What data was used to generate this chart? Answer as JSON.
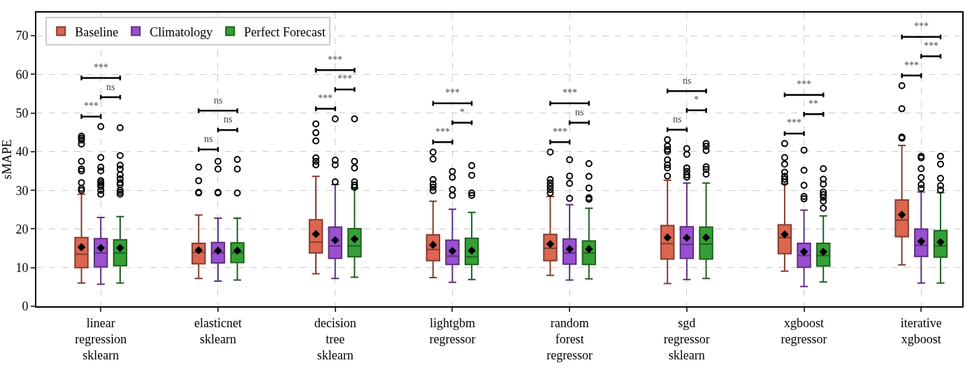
{
  "chart_data": {
    "type": "box",
    "ylabel": "sMAPE",
    "categories": [
      "linear regression sklearn",
      "elasticnet sklearn",
      "decision tree sklearn",
      "lightgbm regressor",
      "random forest regressor",
      "sgd regressor sklearn",
      "xgboost regressor",
      "iterative xgboost"
    ],
    "ylim": [
      0,
      76
    ],
    "yticks": [
      0,
      10,
      20,
      30,
      40,
      50,
      60,
      70
    ],
    "grid": true,
    "legend": "top left",
    "marker": "circle",
    "series": [
      {
        "name": "Baseline",
        "color": "#dc6650",
        "boxes": [
          {
            "low": 6,
            "q1": 10,
            "median": 13.5,
            "q3": 17.8,
            "high": 29,
            "mean": 15.3,
            "outliers": [
              30,
              30.5,
              32,
              35,
              35.5,
              37.5,
              42,
              43,
              43.5,
              44
            ]
          },
          {
            "low": 7.2,
            "q1": 11,
            "median": 14,
            "q3": 16.3,
            "high": 23.6,
            "mean": 14.5,
            "outliers": [
              29.3,
              29.5,
              32.5,
              36
            ]
          },
          {
            "low": 8.4,
            "q1": 13.8,
            "median": 16.6,
            "q3": 22.4,
            "high": 33.6,
            "mean": 18.7,
            "outliers": [
              36.6,
              37.5,
              38.4,
              42.8,
              44.9,
              47.2
            ]
          },
          {
            "low": 7.4,
            "q1": 11.8,
            "median": 14.7,
            "q3": 18.5,
            "high": 27.2,
            "mean": 15.9,
            "outliers": [
              29.9,
              30.8,
              31.6,
              32.8,
              38.1,
              39.9
            ]
          },
          {
            "low": 8,
            "q1": 11.8,
            "median": 15,
            "q3": 18.6,
            "high": 28.4,
            "mean": 16.1,
            "outliers": [
              29.3,
              30.2,
              31.1,
              31.9,
              32.8,
              39.9
            ]
          },
          {
            "low": 5.9,
            "q1": 12.2,
            "median": 16.2,
            "q3": 20.9,
            "high": 32.6,
            "mean": 17.8,
            "outliers": [
              33.7,
              35.8,
              36.6,
              37.9,
              40.1,
              40.6,
              41.5,
              43.1
            ]
          },
          {
            "low": 9.1,
            "q1": 13.6,
            "median": 17.8,
            "q3": 21.1,
            "high": 31.7,
            "mean": 18.6,
            "outliers": [
              32.1,
              32.9,
              33.6,
              34.7,
              36.8,
              38.5,
              42.1
            ]
          },
          {
            "low": 10.7,
            "q1": 18,
            "median": 22.3,
            "q3": 27.5,
            "high": 41.6,
            "mean": 23.7,
            "outliers": [
              43.5,
              43.8,
              51.1,
              57.1
            ]
          }
        ]
      },
      {
        "name": "Climatology",
        "color": "#9a50d0",
        "boxes": [
          {
            "low": 5.7,
            "q1": 10.2,
            "median": 13.8,
            "q3": 17.5,
            "high": 23,
            "mean": 15.1,
            "outliers": [
              29,
              30,
              31,
              31.5,
              32,
              32.5,
              35,
              36,
              38.5,
              46.5
            ]
          },
          {
            "low": 6.5,
            "q1": 11.2,
            "median": 13.9,
            "q3": 16.5,
            "high": 22.8,
            "mean": 14.4,
            "outliers": [
              29.3,
              29.5,
              35.5,
              37.5
            ]
          },
          {
            "low": 7.2,
            "q1": 12.4,
            "median": 15.6,
            "q3": 20.5,
            "high": 31.5,
            "mean": 17.1,
            "outliers": [
              32.2,
              36.6,
              37.8,
              48.5
            ]
          },
          {
            "low": 6.2,
            "q1": 10.8,
            "median": 13,
            "q3": 17.1,
            "high": 25.1,
            "mean": 14.3,
            "outliers": [
              28.7,
              30.2,
              33.4,
              34.9
            ]
          },
          {
            "low": 6.8,
            "q1": 10.9,
            "median": 13.8,
            "q3": 17.4,
            "high": 26.3,
            "mean": 14.8,
            "outliers": [
              27.9,
              31.8,
              33.7,
              37.9
            ]
          },
          {
            "low": 6.9,
            "q1": 12.4,
            "median": 16,
            "q3": 20.6,
            "high": 31.9,
            "mean": 17.7,
            "outliers": [
              33.4,
              34,
              34.9,
              35.8,
              39.3,
              40.8
            ]
          },
          {
            "low": 5.1,
            "q1": 10.1,
            "median": 13.1,
            "q3": 16.3,
            "high": 24.9,
            "mean": 14.1,
            "outliers": [
              27.8,
              28.4,
              31.3,
              35.2,
              40.4
            ]
          },
          {
            "low": 6,
            "q1": 12.9,
            "median": 15.8,
            "q3": 20,
            "high": 29.6,
            "mean": 16.8,
            "outliers": [
              30.5,
              31.5,
              33.3,
              35.6,
              38.4,
              38.8
            ]
          }
        ]
      },
      {
        "name": "Perfect Forecast",
        "color": "#35a035",
        "boxes": [
          {
            "low": 6,
            "q1": 10.5,
            "median": 13.8,
            "q3": 17.2,
            "high": 23.2,
            "mean": 15.1,
            "outliers": [
              29,
              29.5,
              30,
              31.5,
              32,
              33,
              34,
              35.5,
              36.5,
              39,
              46.2
            ]
          },
          {
            "low": 6.8,
            "q1": 11.3,
            "median": 13.9,
            "q3": 16.4,
            "high": 22.8,
            "mean": 14.4,
            "outliers": [
              29.3,
              35.5,
              38
            ]
          },
          {
            "low": 7.5,
            "q1": 12.8,
            "median": 15.6,
            "q3": 20.1,
            "high": 30.5,
            "mean": 17.4,
            "outliers": [
              30.8,
              31.4,
              32.2,
              35.8,
              37.5,
              48.5
            ]
          },
          {
            "low": 6.9,
            "q1": 10.8,
            "median": 12.8,
            "q3": 17.6,
            "high": 24.3,
            "mean": 14.4,
            "outliers": [
              28.7,
              29.3,
              33.9,
              36.4
            ]
          },
          {
            "low": 7.1,
            "q1": 10.8,
            "median": 13.8,
            "q3": 16.9,
            "high": 25.4,
            "mean": 14.8,
            "outliers": [
              27.7,
              28.1,
              30.6,
              33.6,
              36.9
            ]
          },
          {
            "low": 7.2,
            "q1": 12.2,
            "median": 16.1,
            "q3": 20.5,
            "high": 31.9,
            "mean": 17.8,
            "outliers": [
              34.2,
              35.4,
              36.1,
              40.3,
              41.4,
              42.1
            ]
          },
          {
            "low": 6.3,
            "q1": 10.4,
            "median": 13.1,
            "q3": 16.3,
            "high": 23.4,
            "mean": 14.1,
            "outliers": [
              25.4,
              27.2,
              28.2,
              28.9,
              29.6,
              31.6,
              32.9,
              35.6
            ]
          },
          {
            "low": 6,
            "q1": 12.7,
            "median": 15.6,
            "q3": 19.6,
            "high": 29.4,
            "mean": 16.6,
            "outliers": [
              30.1,
              31.2,
              33.1,
              36.8,
              38.8
            ]
          }
        ]
      }
    ],
    "annotations": [
      "***",
      "ns",
      "***",
      "ns",
      "ns",
      "ns",
      "***",
      "***",
      "***",
      "***",
      "*",
      "***",
      "***",
      "ns",
      "***",
      "ns",
      "*",
      "ns",
      "***",
      "**",
      "***",
      "***",
      "***",
      "***"
    ]
  }
}
